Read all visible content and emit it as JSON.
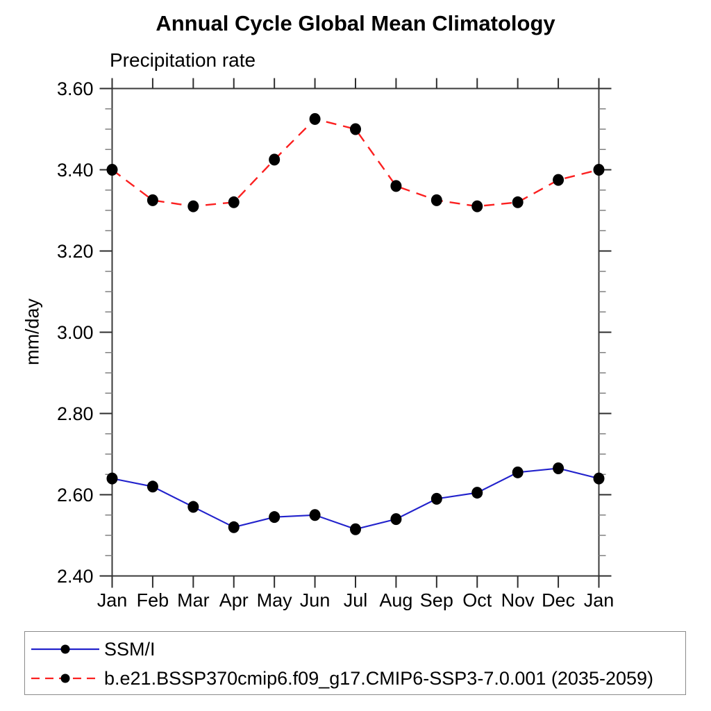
{
  "chart_data": {
    "type": "line",
    "title": "Annual Cycle Global Mean Climatology",
    "subtitle": "Precipitation rate",
    "ylabel": "mm/day",
    "categories": [
      "Jan",
      "Feb",
      "Mar",
      "Apr",
      "May",
      "Jun",
      "Jul",
      "Aug",
      "Sep",
      "Oct",
      "Nov",
      "Dec",
      "Jan"
    ],
    "ylim": [
      2.4,
      3.6
    ],
    "ytick_major_step": 0.2,
    "ytick_minor_step": 0.05,
    "ytick_label_format": "2-decimals",
    "grid": false,
    "legend_position": "bottom-left-box",
    "series": [
      {
        "name": "SSM/I",
        "line_style": "solid",
        "color": "#2222cc",
        "marker": "filled-circle",
        "marker_color": "#000000",
        "values": [
          2.64,
          2.62,
          2.57,
          2.52,
          2.545,
          2.55,
          2.515,
          2.54,
          2.59,
          2.605,
          2.655,
          2.665,
          2.64
        ]
      },
      {
        "name": "b.e21.BSSP370cmip6.f09_g17.CMIP6-SSP3-7.0.001 (2035-2059)",
        "line_style": "dashed",
        "color": "#fb2020",
        "marker": "filled-circle",
        "marker_color": "#000000",
        "values": [
          3.4,
          3.325,
          3.31,
          3.32,
          3.425,
          3.525,
          3.5,
          3.36,
          3.325,
          3.31,
          3.32,
          3.375,
          3.4
        ]
      }
    ]
  },
  "legend": {
    "entries": [
      {
        "label": "SSM/I"
      },
      {
        "label": "b.e21.BSSP370cmip6.f09_g17.CMIP6-SSP3-7.0.001 (2035-2059)"
      }
    ]
  },
  "style_colors": {
    "frame": "#3a3a3a",
    "major_tick": "#2e2e2e",
    "minor_tick": "#808080",
    "text": "#000000",
    "legend_border": "#8a8a8a"
  }
}
